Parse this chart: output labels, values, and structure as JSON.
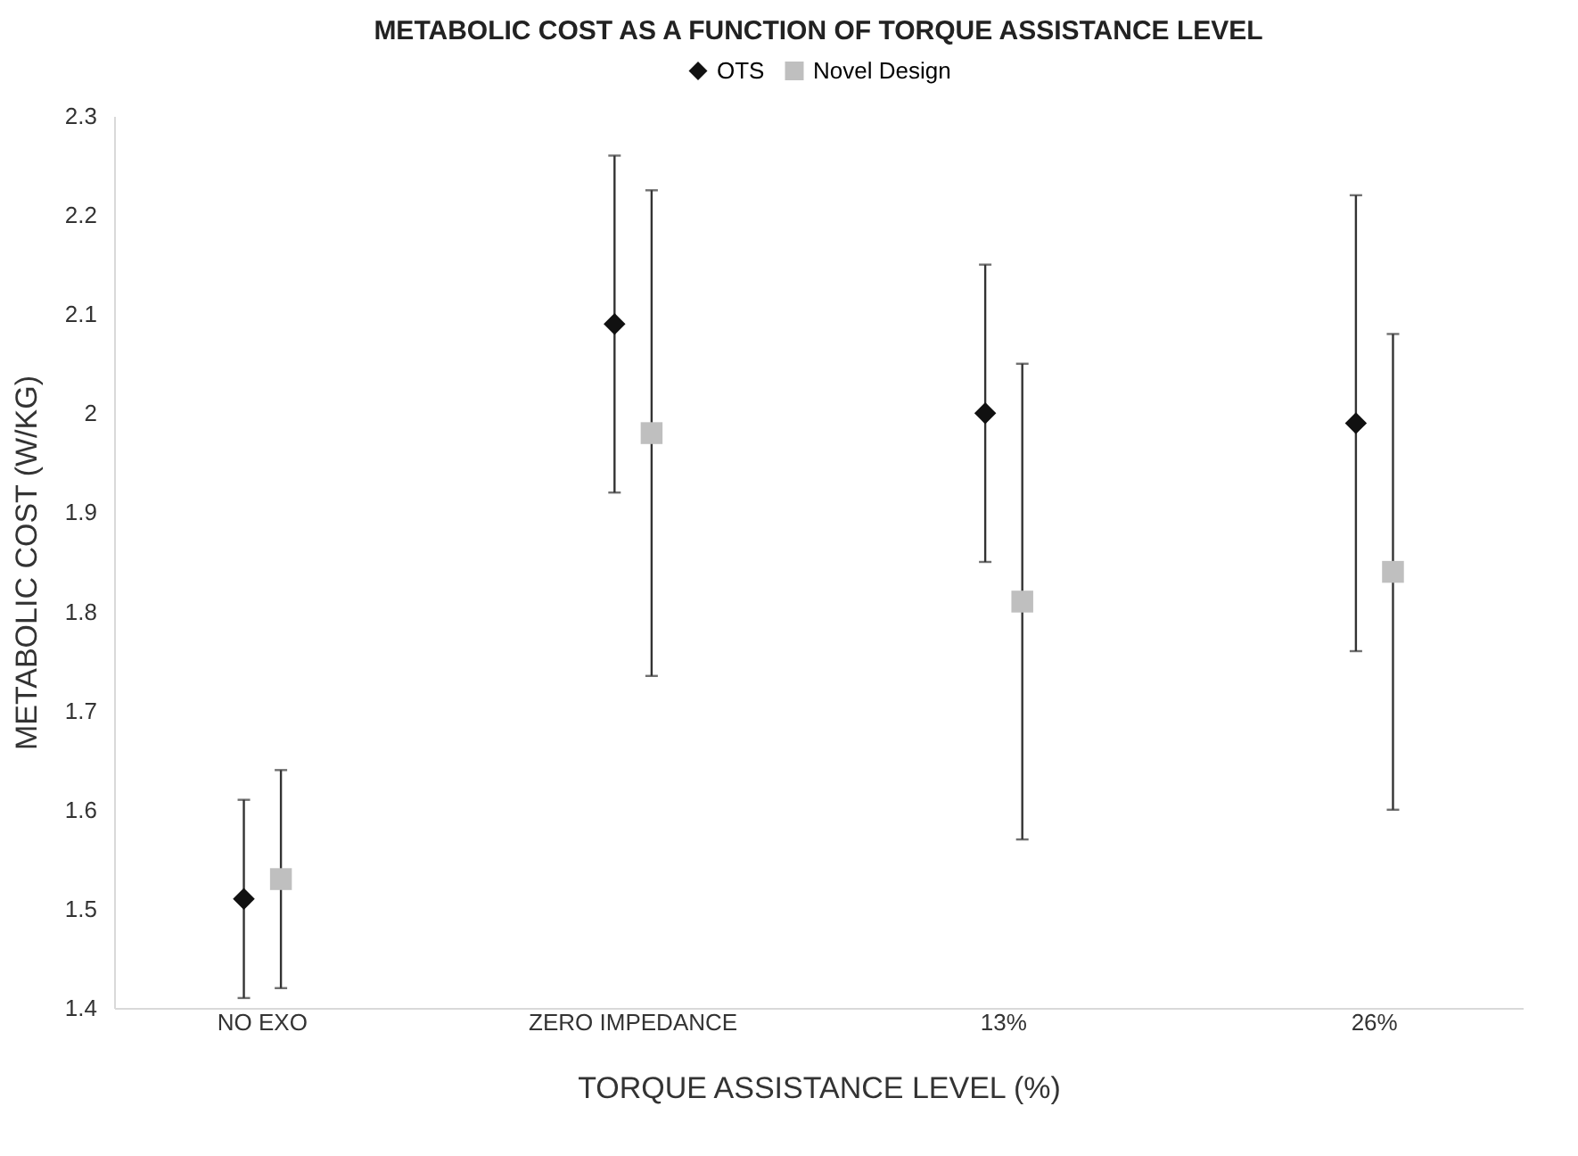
{
  "chart_data": {
    "type": "scatter",
    "title": "METABOLIC COST AS A FUNCTION OF TORQUE ASSISTANCE LEVEL",
    "xlabel": "TORQUE ASSISTANCE LEVEL (%)",
    "ylabel": "METABOLIC COST (W/KG)",
    "categories": [
      "NO EXO",
      "ZERO IMPEDANCE",
      "13%",
      "26%"
    ],
    "series": [
      {
        "name": "OTS",
        "color": "#111111",
        "marker": "diamond",
        "values": [
          1.51,
          2.09,
          2.0,
          1.99
        ],
        "errors": [
          0.1,
          0.17,
          0.15,
          0.23
        ]
      },
      {
        "name": "Novel Design",
        "color": "#bfbfbf",
        "marker": "square",
        "values": [
          1.53,
          1.98,
          1.81,
          1.84
        ],
        "errors": [
          0.11,
          0.245,
          0.24,
          0.24
        ]
      }
    ],
    "ylim": [
      1.4,
      2.3
    ],
    "yticks": [
      1.4,
      1.5,
      1.6,
      1.7,
      1.8,
      1.9,
      2,
      2.1,
      2.2,
      2.3
    ],
    "grid": false,
    "legend": "top"
  }
}
